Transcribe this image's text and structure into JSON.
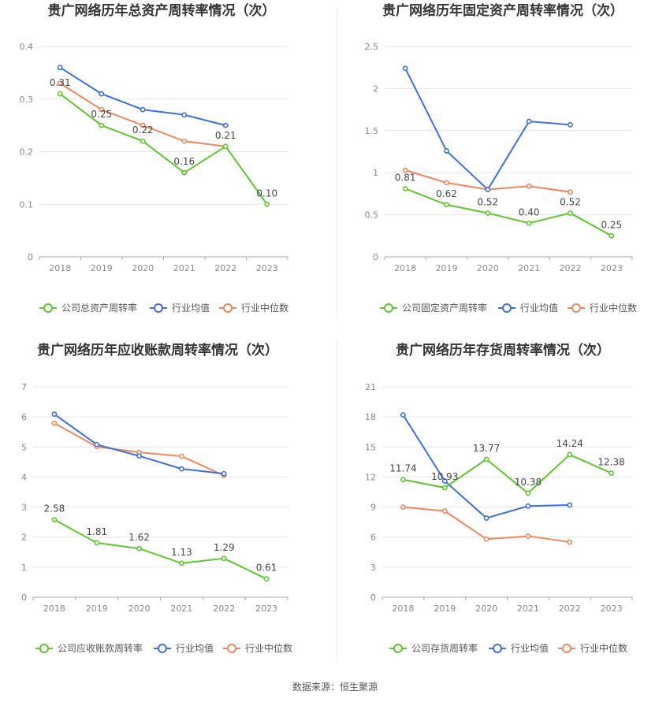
{
  "source_note": "数据来源：恒生聚源",
  "colors": {
    "company": "#5cc72a",
    "avg": "#3a6fdc",
    "median": "#f0875a",
    "grid": "#e6e6e6",
    "axis": "#aaaaaa"
  },
  "chart_data": [
    {
      "type": "line",
      "title": "贵广网络历年总资产周转率情况（次）",
      "categories": [
        "2018",
        "2019",
        "2020",
        "2021",
        "2022",
        "2023"
      ],
      "ylim": [
        0,
        0.4
      ],
      "yticks": [
        "0",
        "0.1",
        "0.2",
        "0.3",
        "0.4"
      ],
      "ytick_values": [
        0,
        0.1,
        0.2,
        0.3,
        0.4
      ],
      "legend_position": "bottom",
      "series": [
        {
          "name": "公司总资产周转率",
          "key": "company",
          "values": [
            0.31,
            0.25,
            0.22,
            0.16,
            0.21,
            0.1
          ],
          "labels": [
            "0.31",
            "0.25",
            "0.22",
            "0.16",
            "0.21",
            "0.10"
          ]
        },
        {
          "name": "行业均值",
          "key": "avg",
          "values": [
            0.36,
            0.31,
            0.28,
            0.27,
            0.25,
            null
          ]
        },
        {
          "name": "行业中位数",
          "key": "median",
          "values": [
            0.33,
            0.28,
            0.25,
            0.22,
            0.21,
            null
          ]
        }
      ]
    },
    {
      "type": "line",
      "title": "贵广网络历年固定资产周转率情况（次）",
      "categories": [
        "2018",
        "2019",
        "2020",
        "2021",
        "2022",
        "2023"
      ],
      "ylim": [
        0,
        2.5
      ],
      "yticks": [
        "0",
        "0.5",
        "1",
        "1.5",
        "2",
        "2.5"
      ],
      "ytick_values": [
        0,
        0.5,
        1,
        1.5,
        2,
        2.5
      ],
      "legend_position": "bottom",
      "series": [
        {
          "name": "公司固定资产周转率",
          "key": "company",
          "values": [
            0.81,
            0.62,
            0.52,
            0.4,
            0.52,
            0.25
          ],
          "labels": [
            "0.81",
            "0.62",
            "0.52",
            "0.40",
            "0.52",
            "0.25"
          ]
        },
        {
          "name": "行业均值",
          "key": "avg",
          "values": [
            2.24,
            1.26,
            0.8,
            1.61,
            1.57,
            null
          ]
        },
        {
          "name": "行业中位数",
          "key": "median",
          "values": [
            1.03,
            0.88,
            0.8,
            0.84,
            0.77,
            null
          ]
        }
      ]
    },
    {
      "type": "line",
      "title": "贵广网络历年应收账款周转率情况（次）",
      "categories": [
        "2018",
        "2019",
        "2020",
        "2021",
        "2022",
        "2023"
      ],
      "ylim": [
        0,
        7
      ],
      "yticks": [
        "0",
        "1",
        "2",
        "3",
        "4",
        "5",
        "6",
        "7"
      ],
      "ytick_values": [
        0,
        1,
        2,
        3,
        4,
        5,
        6,
        7
      ],
      "legend_position": "bottom",
      "series": [
        {
          "name": "公司应收账款周转率",
          "key": "company",
          "values": [
            2.58,
            1.81,
            1.62,
            1.13,
            1.29,
            0.61
          ],
          "labels": [
            "2.58",
            "1.81",
            "1.62",
            "1.13",
            "1.29",
            "0.61"
          ]
        },
        {
          "name": "行业均值",
          "key": "avg",
          "values": [
            6.09,
            5.08,
            4.7,
            4.27,
            4.11,
            null
          ]
        },
        {
          "name": "行业中位数",
          "key": "median",
          "values": [
            5.79,
            5.01,
            4.82,
            4.69,
            4.05,
            null
          ]
        }
      ]
    },
    {
      "type": "line",
      "title": "贵广网络历年存货周转率情况（次）",
      "categories": [
        "2018",
        "2019",
        "2020",
        "2021",
        "2022",
        "2023"
      ],
      "ylim": [
        0,
        21
      ],
      "yticks": [
        "0",
        "3",
        "6",
        "9",
        "12",
        "15",
        "18",
        "21"
      ],
      "ytick_values": [
        0,
        3,
        6,
        9,
        12,
        15,
        18,
        21
      ],
      "legend_position": "bottom",
      "series": [
        {
          "name": "公司存货周转率",
          "key": "company",
          "values": [
            11.74,
            10.93,
            13.77,
            10.38,
            14.24,
            12.38
          ],
          "labels": [
            "11.74",
            "10.93",
            "13.77",
            "10.38",
            "14.24",
            "12.38"
          ]
        },
        {
          "name": "行业均值",
          "key": "avg",
          "values": [
            18.2,
            11.6,
            7.9,
            9.1,
            9.2,
            null
          ]
        },
        {
          "name": "行业中位数",
          "key": "median",
          "values": [
            9.0,
            8.6,
            5.8,
            6.1,
            5.5,
            null
          ]
        }
      ]
    }
  ]
}
